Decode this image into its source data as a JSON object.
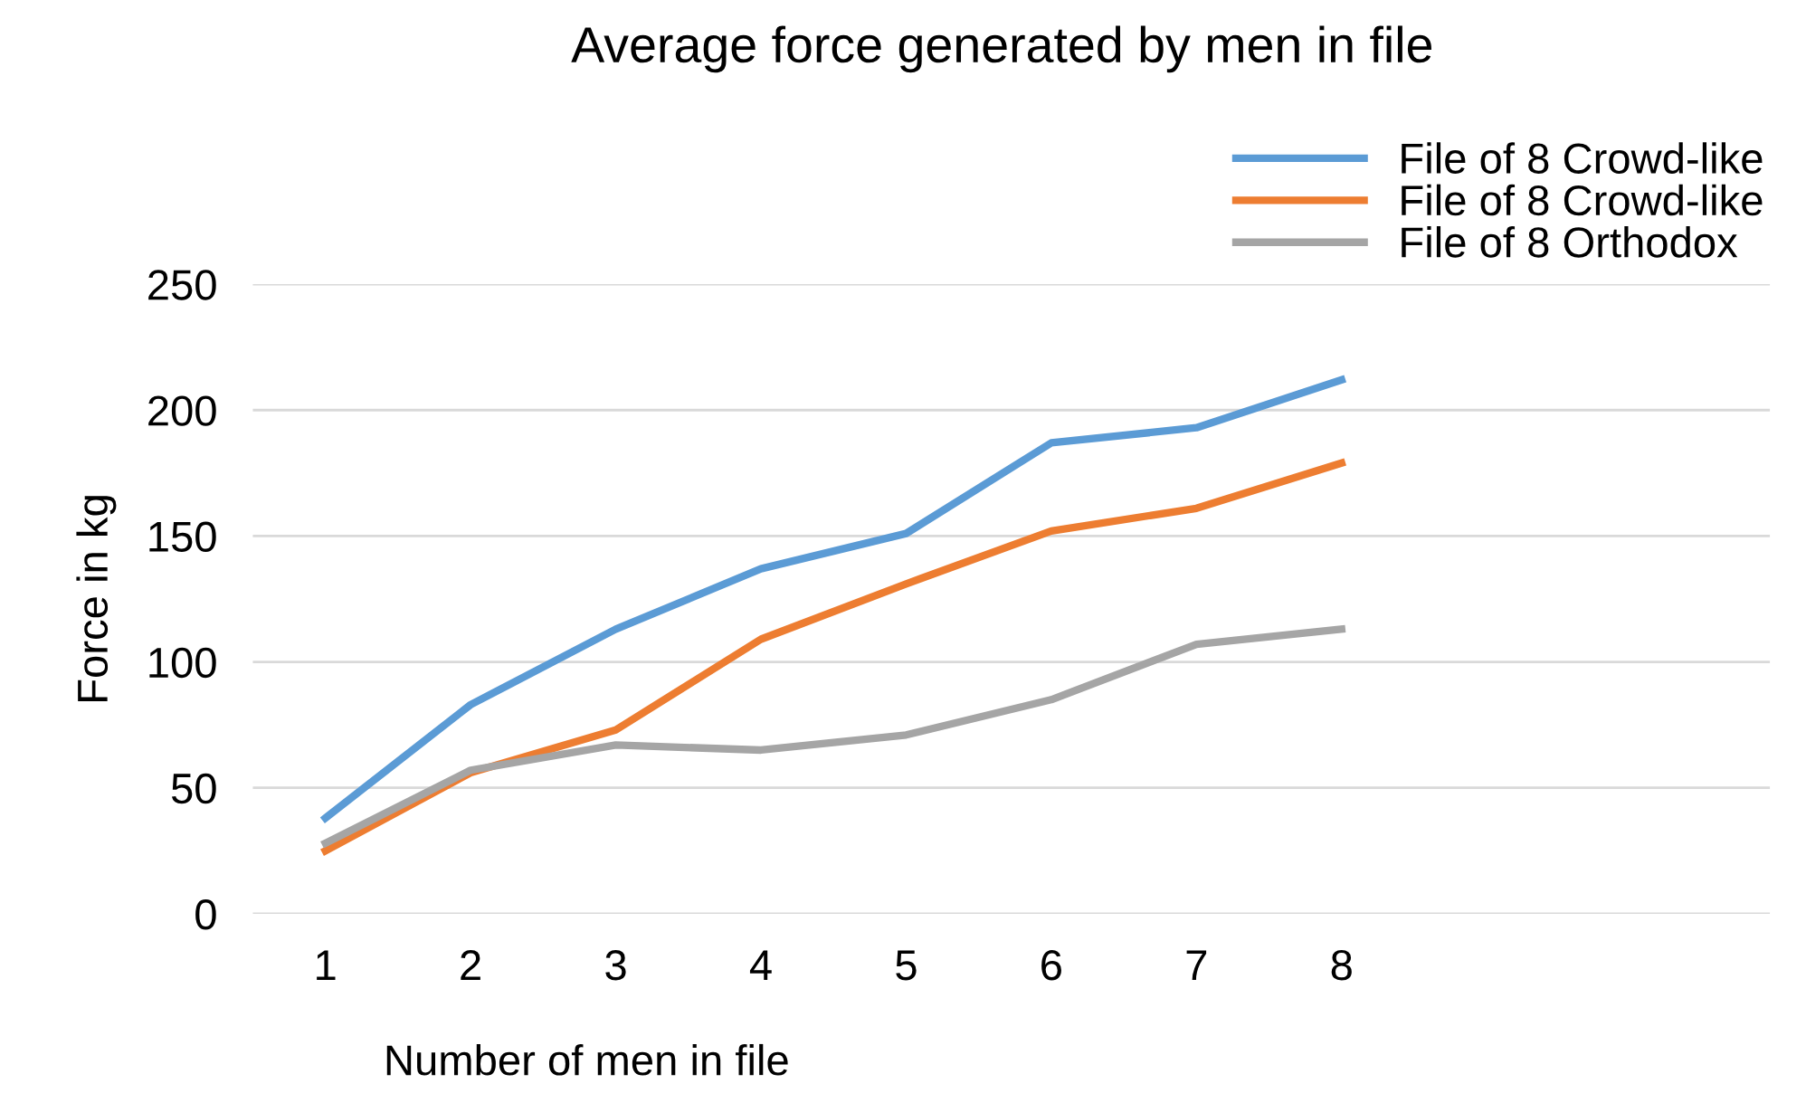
{
  "chart_data": {
    "type": "line",
    "title": "Average force generated by men in file",
    "xlabel": "Number of men in file",
    "ylabel": "Force in kg",
    "categories": [
      "1",
      "2",
      "3",
      "4",
      "5",
      "6",
      "7",
      "8",
      null,
      null
    ],
    "series": [
      {
        "name": "File of 8 Crowd-like",
        "color": "#5b9bd5",
        "values": [
          38,
          83,
          113,
          137,
          151,
          187,
          193,
          212,
          null,
          null
        ]
      },
      {
        "name": "File of 8 Crowd-like",
        "color": "#ed7d31",
        "values": [
          25,
          56,
          73,
          109,
          131,
          152,
          161,
          179,
          null,
          null
        ]
      },
      {
        "name": "File of 8 Orthodox",
        "color": "#a5a5a5",
        "values": [
          28,
          57,
          67,
          65,
          71,
          85,
          107,
          113,
          null,
          null
        ]
      }
    ],
    "ylim": [
      0,
      250
    ],
    "yticks": [
      0,
      50,
      100,
      150,
      200,
      250
    ],
    "grid": "y",
    "legend": "top right",
    "marker": "none",
    "line_style": "solid"
  }
}
